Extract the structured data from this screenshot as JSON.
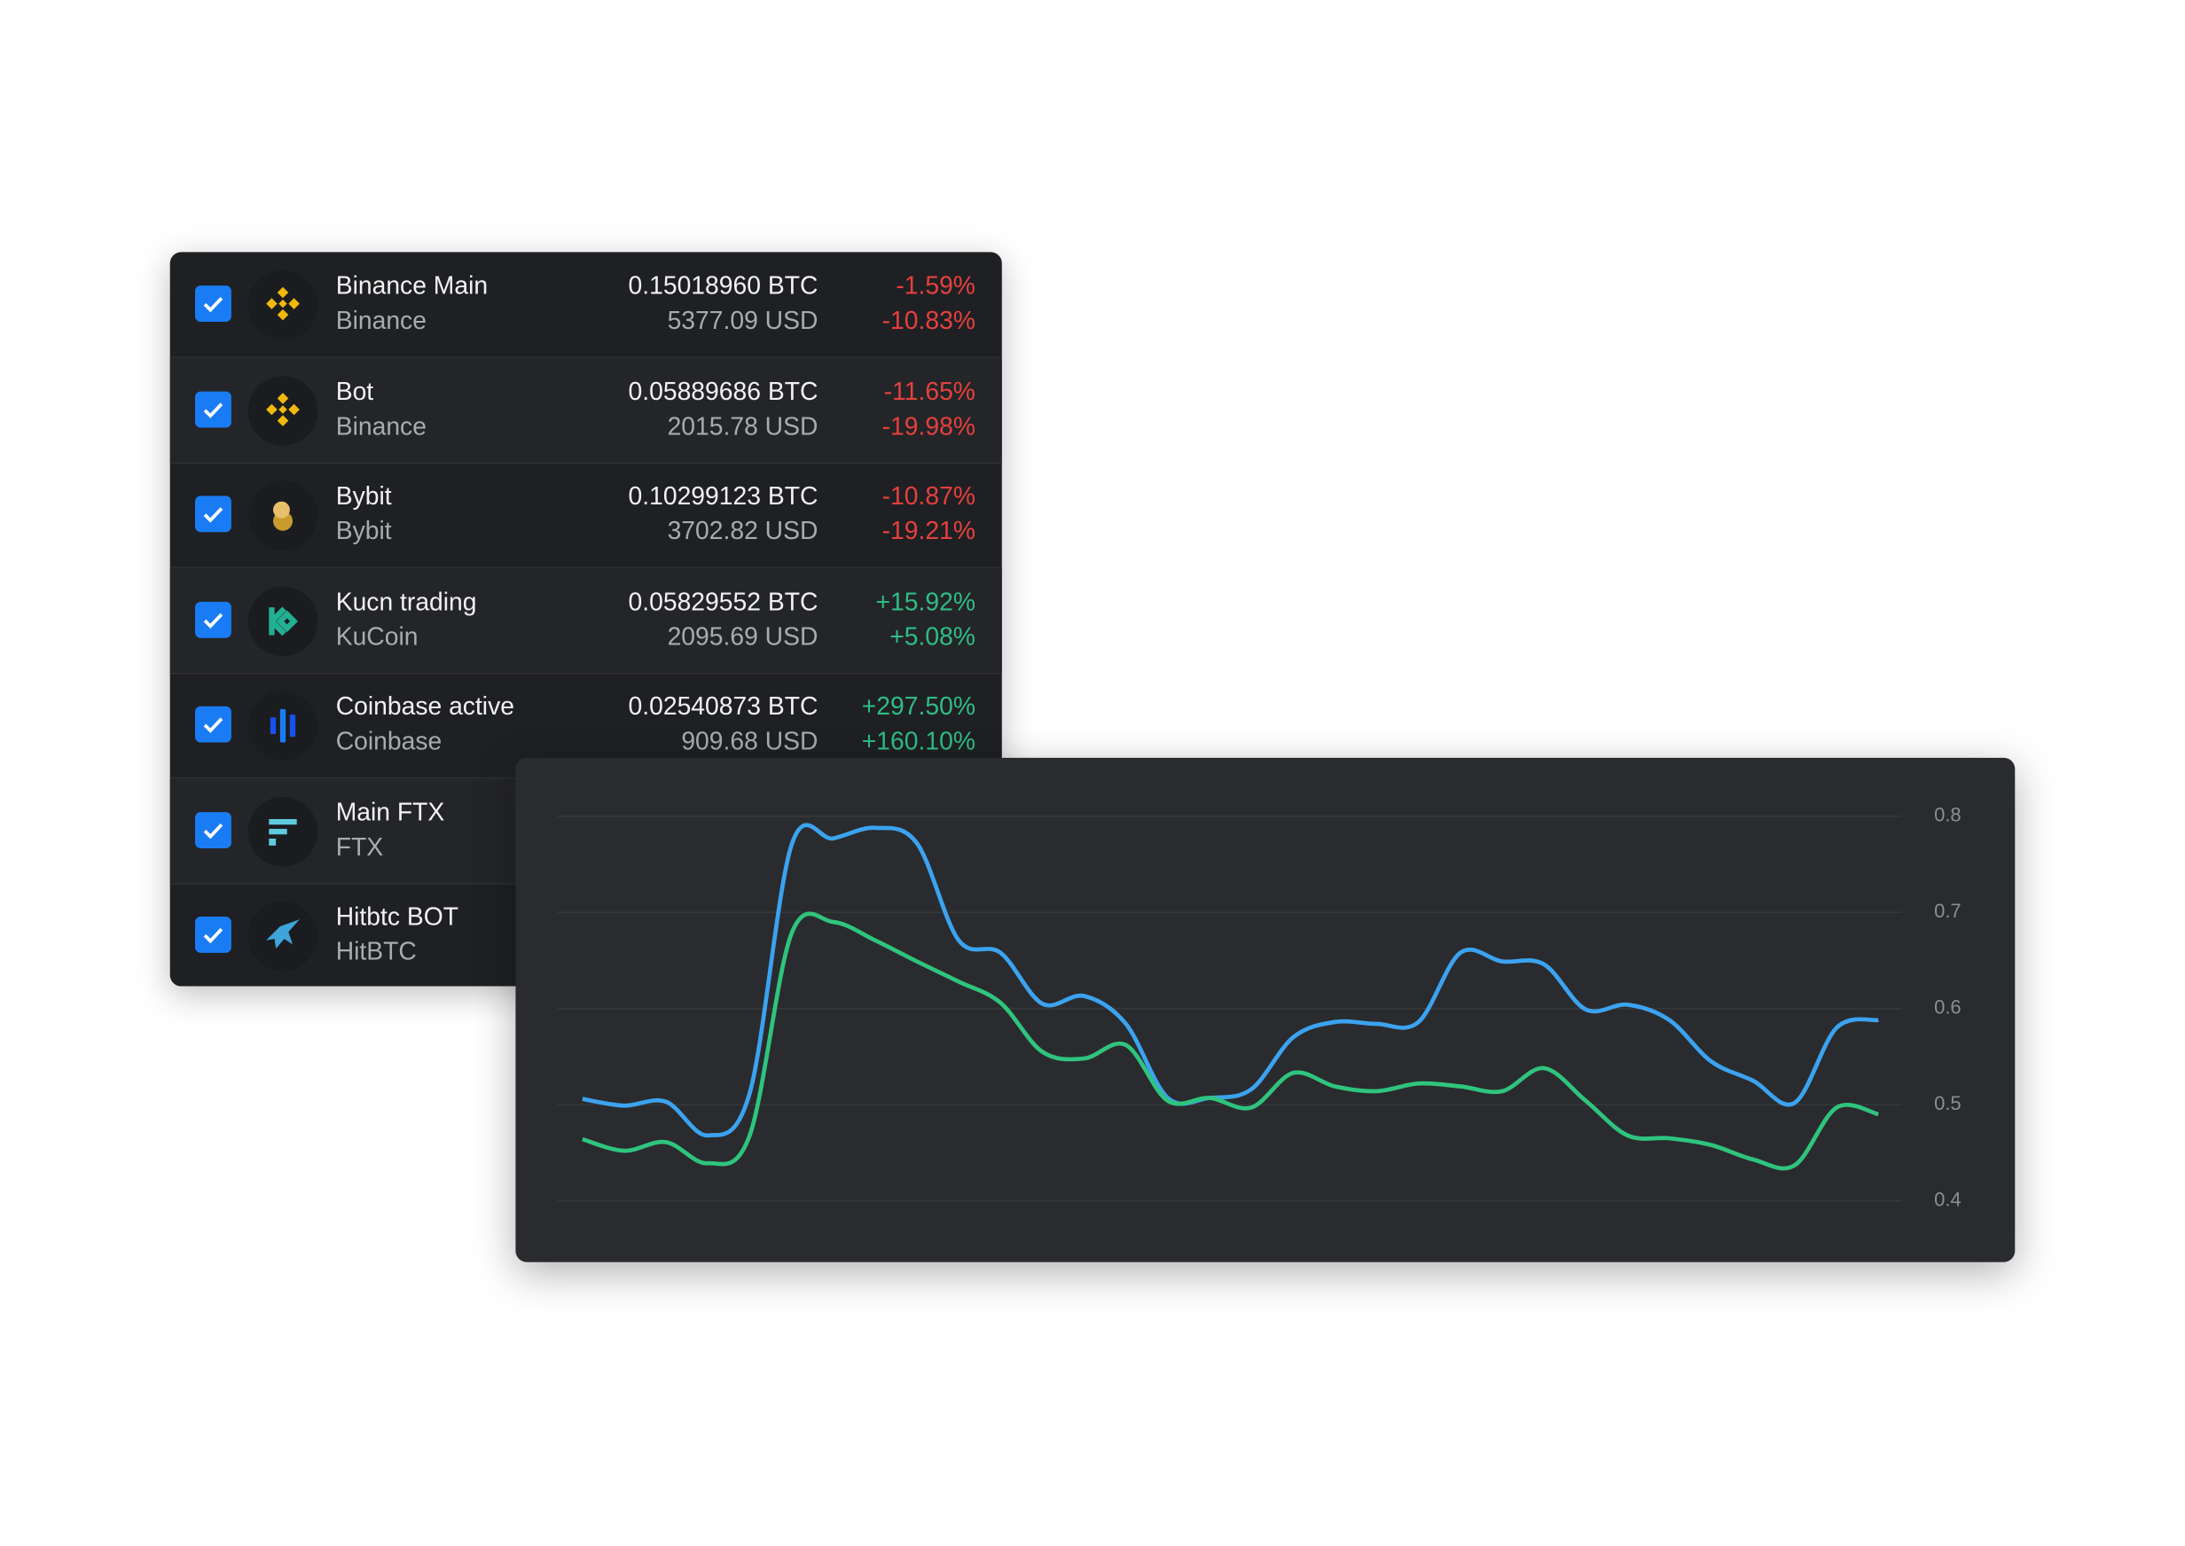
{
  "accounts": [
    {
      "name": "Binance Main",
      "exchange": "Binance",
      "btc": "0.15018960 BTC",
      "usd": "5377.09 USD",
      "change_btc": "-1.59%",
      "change_usd": "-10.83%"
    },
    {
      "name": "Bot",
      "exchange": "Binance",
      "btc": "0.05889686 BTC",
      "usd": "2015.78 USD",
      "change_btc": "-11.65%",
      "change_usd": "-19.98%"
    },
    {
      "name": "Bybit",
      "exchange": "Bybit",
      "btc": "0.10299123 BTC",
      "usd": "3702.82 USD",
      "change_btc": "-10.87%",
      "change_usd": "-19.21%"
    },
    {
      "name": "Kucn trading",
      "exchange": "KuCoin",
      "btc": "0.05829552 BTC",
      "usd": "2095.69 USD",
      "change_btc": "+15.92%",
      "change_usd": "+5.08%"
    },
    {
      "name": "Coinbase active",
      "exchange": "Coinbase",
      "btc": "0.02540873 BTC",
      "usd": "909.68 USD",
      "change_btc": "+297.50%",
      "change_usd": "+160.10%"
    },
    {
      "name": "Main FTX",
      "exchange": "FTX"
    },
    {
      "name": "Hitbtc BOT",
      "exchange": "HitBTC"
    }
  ],
  "chart_data": {
    "type": "line",
    "series": [
      {
        "color": "#3ba3f0",
        "values": [
          0.506,
          0.499,
          0.503,
          0.468,
          0.512,
          0.77,
          0.777,
          0.788,
          0.772,
          0.671,
          0.658,
          0.605,
          0.613,
          0.584,
          0.507,
          0.507,
          0.516,
          0.57,
          0.586,
          0.584,
          0.586,
          0.658,
          0.649,
          0.646,
          0.599,
          0.604,
          0.588,
          0.545,
          0.525,
          0.502,
          0.58,
          0.588
        ]
      },
      {
        "color": "#2fc47e",
        "values": [
          0.464,
          0.452,
          0.461,
          0.439,
          0.468,
          0.678,
          0.69,
          0.671,
          0.649,
          0.628,
          0.606,
          0.555,
          0.548,
          0.562,
          0.504,
          0.507,
          0.497,
          0.533,
          0.519,
          0.514,
          0.522,
          0.519,
          0.514,
          0.538,
          0.504,
          0.468,
          0.465,
          0.458,
          0.443,
          0.437,
          0.497,
          0.49
        ]
      }
    ],
    "ylim": [
      0.4,
      0.8
    ],
    "yticks": [
      0.4,
      0.5,
      0.6,
      0.7,
      0.8
    ],
    "grid": true
  }
}
